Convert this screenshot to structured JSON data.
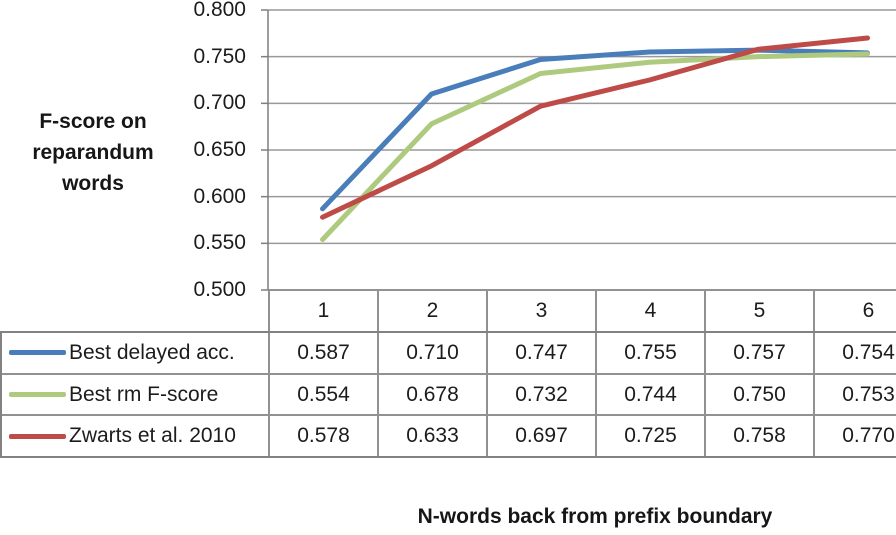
{
  "chart_data": {
    "type": "line",
    "title": "",
    "xlabel": "N-words back from prefix boundary",
    "ylabel": "F-score on reparandum words",
    "ylabel_lines": [
      "F-score on",
      "reparandum",
      "words"
    ],
    "x": [
      1,
      2,
      3,
      4,
      5,
      6
    ],
    "ylim": [
      0.5,
      0.8
    ],
    "ytick_step": 0.05,
    "ytick_labels": [
      "0.800",
      "0.750",
      "0.700",
      "0.650",
      "0.600",
      "0.550",
      "0.500"
    ],
    "grid": true,
    "legend_position": "table-left",
    "series": [
      {
        "name": "Best delayed acc.",
        "color": "#4A7EBB",
        "values": [
          0.587,
          0.71,
          0.747,
          0.755,
          0.757,
          0.754
        ],
        "values_display": [
          "0.587",
          "0.710",
          "0.747",
          "0.755",
          "0.757",
          "0.754"
        ]
      },
      {
        "name": "Best rm F-score",
        "color": "#AECA7E",
        "values": [
          0.554,
          0.678,
          0.732,
          0.744,
          0.75,
          0.753
        ],
        "values_display": [
          "0.554",
          "0.678",
          "0.732",
          "0.744",
          "0.750",
          "0.753"
        ]
      },
      {
        "name": "Zwarts et al. 2010",
        "color": "#BE4B48",
        "values": [
          0.578,
          0.633,
          0.697,
          0.725,
          0.758,
          0.77
        ],
        "values_display": [
          "0.578",
          "0.633",
          "0.697",
          "0.725",
          "0.758",
          "0.770"
        ]
      }
    ]
  },
  "colors": {
    "gridline": "#999999",
    "axis": "#7f7f7f",
    "table_border": "#919191",
    "text": "#1c1c1c"
  }
}
